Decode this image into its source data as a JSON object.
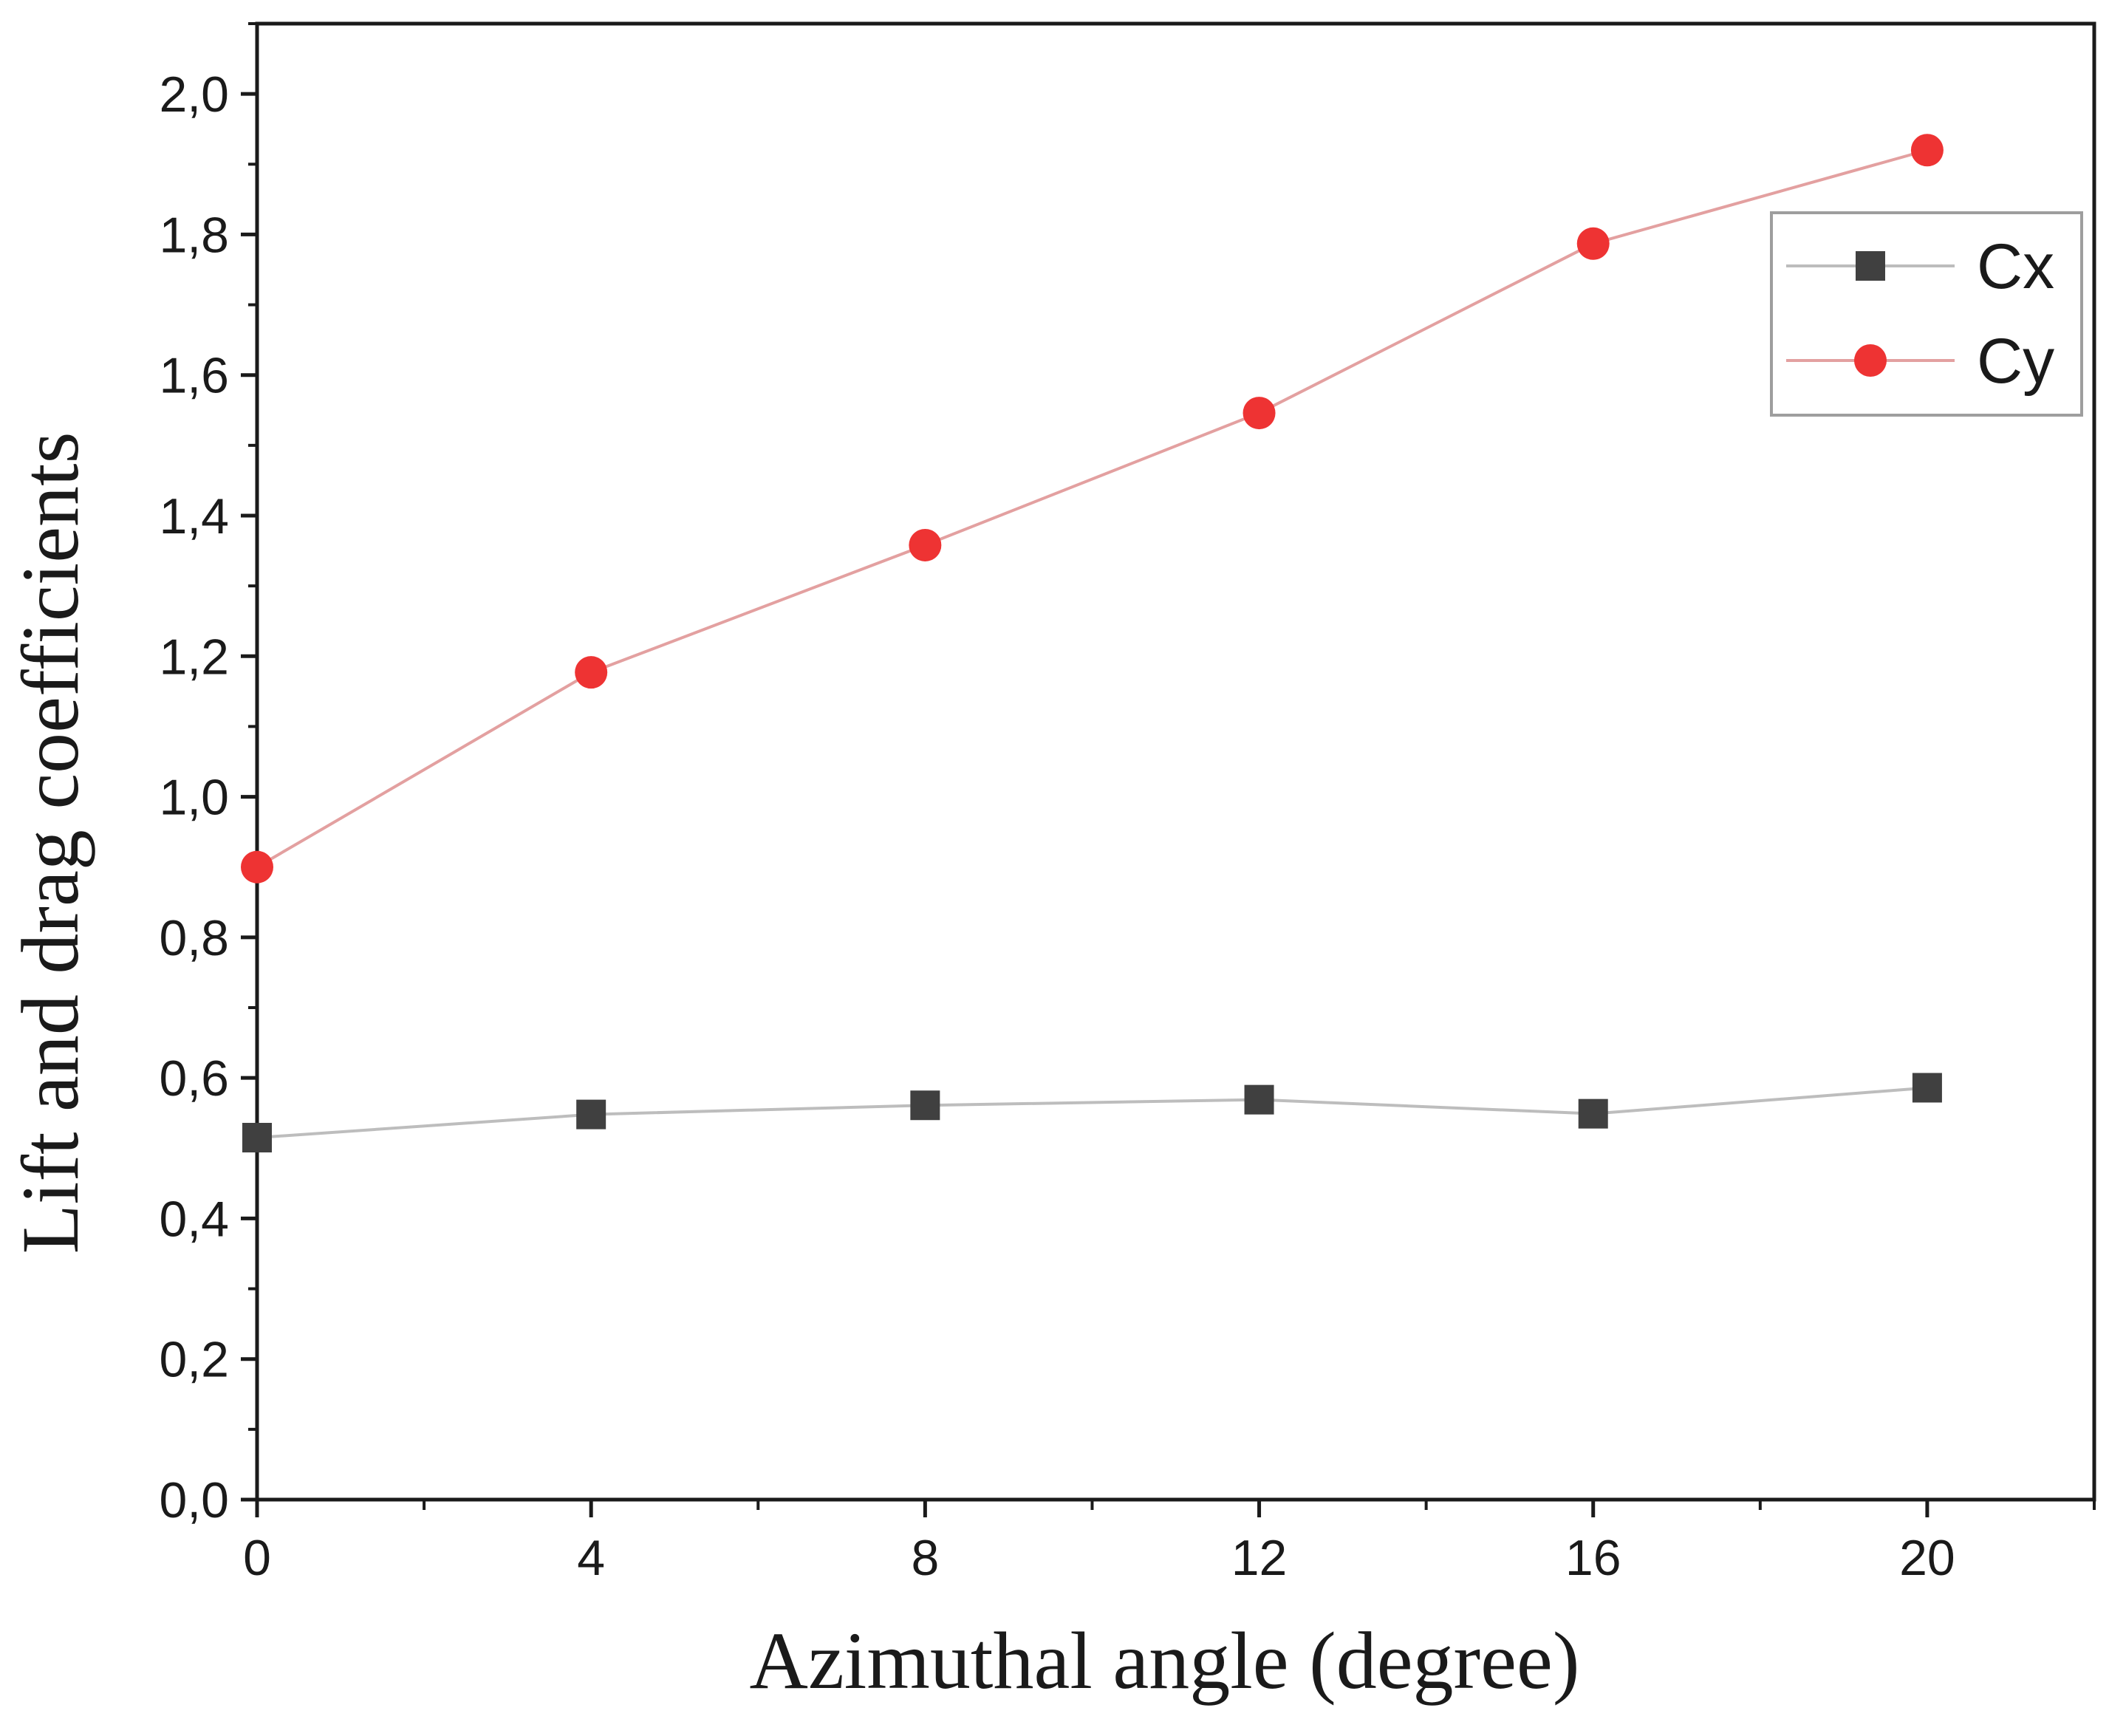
{
  "chart_data": {
    "type": "line",
    "xlabel": "Azimuthal angle (degree)",
    "ylabel": "Lift and drag coefficients",
    "xlim": [
      0,
      22
    ],
    "ylim": [
      0,
      2.1
    ],
    "x_ticks": [
      0,
      4,
      8,
      12,
      16,
      20
    ],
    "x_tick_labels": [
      "0",
      "4",
      "8",
      "12",
      "16",
      "20"
    ],
    "y_ticks": [
      0.0,
      0.2,
      0.4,
      0.6,
      0.8,
      1.0,
      1.2,
      1.4,
      1.6,
      1.8,
      2.0
    ],
    "y_tick_labels": [
      "0,0",
      "0,2",
      "0,4",
      "0,6",
      "0,8",
      "1,0",
      "1,2",
      "1,4",
      "1,6",
      "1,8",
      "2,0"
    ],
    "x_minor_step": 2,
    "y_minor_step": 0.1,
    "grid": false,
    "legend_position": "top-right",
    "x": [
      0,
      4,
      8,
      12,
      16,
      20
    ],
    "series": [
      {
        "name": "Cx",
        "marker": "square",
        "marker_color": "#404040",
        "line_color": "#bdbdbd",
        "values": [
          0.515,
          0.548,
          0.561,
          0.569,
          0.549,
          0.586
        ]
      },
      {
        "name": "Cy",
        "marker": "circle",
        "marker_color": "#ee3333",
        "line_color": "#e3a0a0",
        "values": [
          0.9,
          1.177,
          1.358,
          1.546,
          1.787,
          1.92
        ]
      }
    ]
  }
}
